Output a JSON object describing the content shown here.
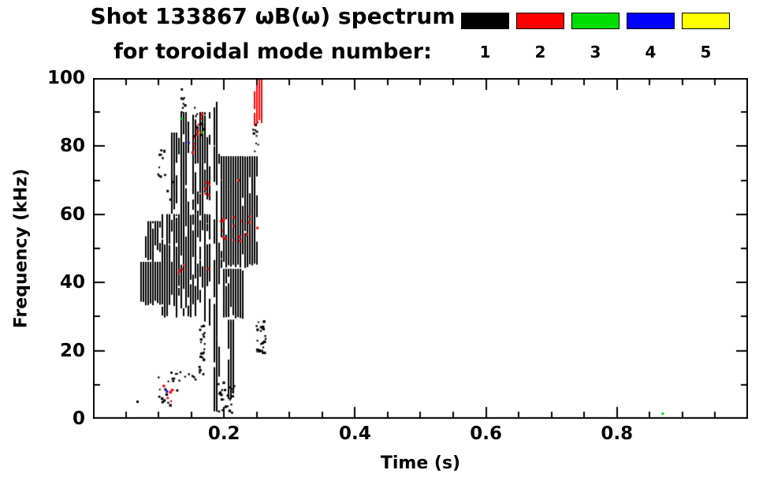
{
  "header": {
    "title_line1": "Shot 133867 ωB(ω) spectrum",
    "title_line2": "for toroidal mode number:"
  },
  "legend": {
    "modes": [
      {
        "label": "1",
        "color": "#000000"
      },
      {
        "label": "2",
        "color": "#ff0000"
      },
      {
        "label": "3",
        "color": "#00dd00"
      },
      {
        "label": "4",
        "color": "#0000ff"
      },
      {
        "label": "5",
        "color": "#ffff00"
      }
    ]
  },
  "chart_data": {
    "type": "scatter",
    "title": "Shot 133867 ωB(ω) spectrum for toroidal mode number: 1 2 3 4 5",
    "xlabel": "Time (s)",
    "ylabel": "Frequency (kHz)",
    "xlim": [
      0,
      1.0
    ],
    "ylim": [
      0,
      100
    ],
    "xticks": [
      0.2,
      0.4,
      0.6,
      0.8
    ],
    "xtick_labels": [
      "0.2",
      "0.4",
      "0.6",
      "0.8"
    ],
    "yticks": [
      0,
      20,
      40,
      60,
      80,
      100
    ],
    "ytick_labels": [
      "0",
      "20",
      "40",
      "60",
      "80",
      "100"
    ],
    "x_minor_step": 0.05,
    "y_minor_step": 10,
    "grid": false,
    "legend_position": "top-right",
    "series": [
      {
        "name": "mode 1",
        "color": "#000000",
        "clusters": [
          {
            "t": [
              0.073,
              0.128
            ],
            "f": [
              33,
              46
            ],
            "n": 300,
            "kind": "streak"
          },
          {
            "t": [
              0.078,
              0.105
            ],
            "f": [
              46,
              58
            ],
            "n": 22,
            "kind": "streak"
          },
          {
            "t": [
              0.105,
              0.178
            ],
            "f": [
              27,
              60
            ],
            "n": 170,
            "kind": "streak"
          },
          {
            "t": [
              0.098,
              0.122
            ],
            "f": [
              62,
              80
            ],
            "n": 14,
            "kind": "dot"
          },
          {
            "t": [
              0.118,
              0.128
            ],
            "f": [
              60,
              84
            ],
            "n": 28,
            "kind": "streak"
          },
          {
            "t": [
              0.131,
              0.143
            ],
            "f": [
              55,
              90
            ],
            "n": 40,
            "kind": "streak"
          },
          {
            "t": [
              0.133,
              0.139
            ],
            "f": [
              90,
              97
            ],
            "n": 8,
            "kind": "dot"
          },
          {
            "t": [
              0.15,
              0.178
            ],
            "f": [
              58,
              90
            ],
            "n": 60,
            "kind": "streak"
          },
          {
            "t": [
              0.152,
              0.168
            ],
            "f": [
              82,
              92
            ],
            "n": 10,
            "kind": "dot"
          },
          {
            "t": [
              0.16,
              0.17
            ],
            "f": [
              13,
              28
            ],
            "n": 20,
            "kind": "dot"
          },
          {
            "t": [
              0.184,
              0.19
            ],
            "f": [
              2,
              93
            ],
            "n": 80,
            "kind": "streak"
          },
          {
            "t": [
              0.193,
              0.248
            ],
            "f": [
              44,
              77
            ],
            "n": 300,
            "kind": "streak"
          },
          {
            "t": [
              0.197,
              0.228
            ],
            "f": [
              29,
              44
            ],
            "n": 60,
            "kind": "streak"
          },
          {
            "t": [
              0.205,
              0.214
            ],
            "f": [
              5,
              29
            ],
            "n": 35,
            "kind": "streak"
          },
          {
            "t": [
              0.19,
              0.215
            ],
            "f": [
              2,
              12
            ],
            "n": 25,
            "kind": "dot"
          },
          {
            "t": [
              0.248,
              0.263
            ],
            "f": [
              19,
              29
            ],
            "n": 28,
            "kind": "dot"
          },
          {
            "t": [
              0.098,
              0.158
            ],
            "f": [
              11,
              14
            ],
            "n": 15,
            "kind": "dot"
          },
          {
            "t": [
              0.093,
              0.128
            ],
            "f": [
              4,
              9
            ],
            "n": 10,
            "kind": "dot"
          },
          {
            "t": [
              0.243,
              0.252
            ],
            "f": [
              78,
              88
            ],
            "n": 10,
            "kind": "dot"
          }
        ],
        "points": [
          [
            0.068,
            5
          ]
        ]
      },
      {
        "name": "mode 2",
        "color": "#ff0000",
        "clusters": [
          {
            "t": [
              0.246,
              0.256
            ],
            "f": [
              84,
              100
            ],
            "n": 26,
            "kind": "streak"
          },
          {
            "t": [
              0.15,
              0.163
            ],
            "f": [
              78,
              86
            ],
            "n": 8,
            "kind": "dot"
          },
          {
            "t": [
              0.158,
              0.17
            ],
            "f": [
              86,
              93
            ],
            "n": 5,
            "kind": "dot"
          },
          {
            "t": [
              0.168,
              0.177
            ],
            "f": [
              62,
              70
            ],
            "n": 6,
            "kind": "dot"
          },
          {
            "t": [
              0.186,
              0.201
            ],
            "f": [
              53,
              60
            ],
            "n": 6,
            "kind": "dot"
          },
          {
            "t": [
              0.213,
              0.242
            ],
            "f": [
              52,
              60
            ],
            "n": 9,
            "kind": "dot"
          },
          {
            "t": [
              0.104,
              0.126
            ],
            "f": [
              4,
              10
            ],
            "n": 6,
            "kind": "dot"
          },
          {
            "t": [
              0.128,
              0.14
            ],
            "f": [
              42,
              48
            ],
            "n": 4,
            "kind": "dot"
          }
        ],
        "points": [
          [
            0.251,
            56
          ],
          [
            0.222,
            70
          ],
          [
            0.176,
            44
          ]
        ]
      },
      {
        "name": "mode 3",
        "color": "#00dd00",
        "clusters": [],
        "points": [
          [
            0.136,
            88
          ],
          [
            0.167,
            84
          ],
          [
            0.87,
            1.5
          ]
        ]
      },
      {
        "name": "mode 4",
        "color": "#0000ff",
        "clusters": [],
        "points": [
          [
            0.146,
            81
          ],
          [
            0.113,
            8
          ]
        ]
      },
      {
        "name": "mode 5",
        "color": "#ffff00",
        "clusters": [],
        "points": []
      }
    ]
  }
}
